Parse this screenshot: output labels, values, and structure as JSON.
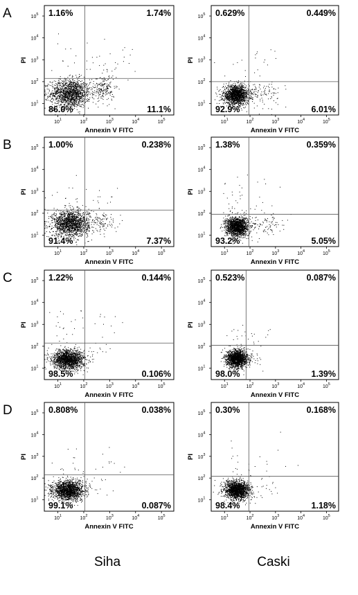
{
  "column_labels": [
    "Siha",
    "Caski"
  ],
  "row_labels": [
    "A",
    "B",
    "C",
    "D"
  ],
  "chart_data": [
    {
      "type": "scatter",
      "row": "A",
      "column": "Siha",
      "xlabel": "Annexin V FITC",
      "ylabel": "PI",
      "x_scale": "log",
      "y_scale": "log",
      "xlim": [
        3,
        300000
      ],
      "ylim": [
        3,
        300000
      ],
      "x_ticks": [
        "10",
        "10",
        "10",
        "10",
        "10"
      ],
      "x_tick_exp": [
        "1",
        "2",
        "3",
        "4",
        "5"
      ],
      "y_ticks": [
        "10",
        "10",
        "10",
        "10",
        "10"
      ],
      "y_tick_exp": [
        "1",
        "2",
        "3",
        "4",
        "5"
      ],
      "gate": {
        "x": 110,
        "y": 140
      },
      "quadrants": {
        "upper_left": "1.16%",
        "upper_right": "1.74%",
        "lower_left": "86.0%",
        "lower_right": "11.1%"
      },
      "populations": [
        {
          "cx": 30,
          "cy": 30,
          "sx": 0.38,
          "sy": 0.32,
          "frac": 0.86
        },
        {
          "cx": 600,
          "cy": 50,
          "sx": 0.2,
          "sy": 0.32,
          "frac": 0.11
        },
        {
          "cx": 30,
          "cy": 600,
          "sx": 0.5,
          "sy": 0.6,
          "frac": 0.012
        },
        {
          "cx": 800,
          "cy": 800,
          "sx": 0.5,
          "sy": 0.6,
          "frac": 0.017
        }
      ],
      "grid": false,
      "legend": "none"
    },
    {
      "type": "scatter",
      "row": "A",
      "column": "Caski",
      "xlabel": "Annexin V FITC",
      "ylabel": "PI",
      "x_scale": "log",
      "y_scale": "log",
      "xlim": [
        3,
        300000
      ],
      "ylim": [
        3,
        300000
      ],
      "x_ticks": [
        "10",
        "10",
        "10",
        "10",
        "10"
      ],
      "x_tick_exp": [
        "1",
        "2",
        "3",
        "4",
        "5"
      ],
      "y_ticks": [
        "10",
        "10",
        "10",
        "10",
        "10"
      ],
      "y_tick_exp": [
        "1",
        "2",
        "3",
        "4",
        "5"
      ],
      "gate": {
        "x": 90,
        "y": 100
      },
      "quadrants": {
        "upper_left": "0.629%",
        "upper_right": "0.449%",
        "lower_left": "92.9%",
        "lower_right": "6.01%"
      },
      "populations": [
        {
          "cx": 28,
          "cy": 25,
          "sx": 0.25,
          "sy": 0.22,
          "frac": 0.929
        },
        {
          "cx": 300,
          "cy": 30,
          "sx": 0.35,
          "sy": 0.3,
          "frac": 0.06
        },
        {
          "cx": 40,
          "cy": 500,
          "sx": 0.4,
          "sy": 0.5,
          "frac": 0.006
        },
        {
          "cx": 500,
          "cy": 500,
          "sx": 0.5,
          "sy": 0.5,
          "frac": 0.005
        }
      ],
      "grid": false,
      "legend": "none"
    },
    {
      "type": "scatter",
      "row": "B",
      "column": "Siha",
      "xlabel": "Annexin V FITC",
      "ylabel": "PI",
      "x_scale": "log",
      "y_scale": "log",
      "xlim": [
        3,
        300000
      ],
      "ylim": [
        3,
        300000
      ],
      "x_ticks": [
        "10",
        "10",
        "10",
        "10",
        "10"
      ],
      "x_tick_exp": [
        "1",
        "2",
        "3",
        "4",
        "5"
      ],
      "y_ticks": [
        "10",
        "10",
        "10",
        "10",
        "10"
      ],
      "y_tick_exp": [
        "1",
        "2",
        "3",
        "4",
        "5"
      ],
      "gate": {
        "x": 110,
        "y": 140
      },
      "quadrants": {
        "upper_left": "1.00%",
        "upper_right": "0.238%",
        "lower_left": "91.4%",
        "lower_right": "7.37%"
      },
      "populations": [
        {
          "cx": 30,
          "cy": 35,
          "sx": 0.35,
          "sy": 0.3,
          "frac": 0.914
        },
        {
          "cx": 400,
          "cy": 40,
          "sx": 0.35,
          "sy": 0.28,
          "frac": 0.074
        },
        {
          "cx": 30,
          "cy": 500,
          "sx": 0.4,
          "sy": 0.5,
          "frac": 0.01
        },
        {
          "cx": 600,
          "cy": 600,
          "sx": 0.5,
          "sy": 0.5,
          "frac": 0.002
        }
      ],
      "grid": false,
      "legend": "none"
    },
    {
      "type": "scatter",
      "row": "B",
      "column": "Caski",
      "xlabel": "Annexin V FITC",
      "ylabel": "PI",
      "x_scale": "log",
      "y_scale": "log",
      "xlim": [
        3,
        300000
      ],
      "ylim": [
        3,
        300000
      ],
      "x_ticks": [
        "10",
        "10",
        "10",
        "10",
        "10"
      ],
      "x_tick_exp": [
        "1",
        "2",
        "3",
        "4",
        "5"
      ],
      "y_ticks": [
        "10",
        "10",
        "10",
        "10",
        "10"
      ],
      "y_tick_exp": [
        "1",
        "2",
        "3",
        "4",
        "5"
      ],
      "gate": {
        "x": 90,
        "y": 90
      },
      "quadrants": {
        "upper_left": "1.38%",
        "upper_right": "0.359%",
        "lower_left": "93.2%",
        "lower_right": "5.05%"
      },
      "populations": [
        {
          "cx": 30,
          "cy": 25,
          "sx": 0.22,
          "sy": 0.22,
          "frac": 0.932
        },
        {
          "cx": 400,
          "cy": 30,
          "sx": 0.35,
          "sy": 0.25,
          "frac": 0.05
        },
        {
          "cx": 35,
          "cy": 500,
          "sx": 0.35,
          "sy": 0.5,
          "frac": 0.014
        },
        {
          "cx": 400,
          "cy": 400,
          "sx": 0.5,
          "sy": 0.5,
          "frac": 0.004
        }
      ],
      "grid": false,
      "legend": "none"
    },
    {
      "type": "scatter",
      "row": "C",
      "column": "Siha",
      "xlabel": "Annexin V FITC",
      "ylabel": "PI",
      "x_scale": "log",
      "y_scale": "log",
      "xlim": [
        3,
        300000
      ],
      "ylim": [
        3,
        300000
      ],
      "x_ticks": [
        "10",
        "10",
        "10",
        "10",
        "10"
      ],
      "x_tick_exp": [
        "1",
        "2",
        "3",
        "4",
        "5"
      ],
      "y_ticks": [
        "10",
        "10",
        "10",
        "10",
        "10"
      ],
      "y_tick_exp": [
        "1",
        "2",
        "3",
        "4",
        "5"
      ],
      "gate": {
        "x": 110,
        "y": 140
      },
      "quadrants": {
        "upper_left": "1.22%",
        "upper_right": "0.144%",
        "lower_left": "98.5%",
        "lower_right": "0.106%"
      },
      "populations": [
        {
          "cx": 25,
          "cy": 25,
          "sx": 0.3,
          "sy": 0.22,
          "frac": 0.985
        },
        {
          "cx": 30,
          "cy": 600,
          "sx": 0.35,
          "sy": 0.45,
          "frac": 0.012
        },
        {
          "cx": 400,
          "cy": 500,
          "sx": 0.5,
          "sy": 0.5,
          "frac": 0.0015
        },
        {
          "cx": 300,
          "cy": 40,
          "sx": 0.3,
          "sy": 0.3,
          "frac": 0.001
        }
      ],
      "grid": false,
      "legend": "none"
    },
    {
      "type": "scatter",
      "row": "C",
      "column": "Caski",
      "xlabel": "Annexin V FITC",
      "ylabel": "PI",
      "x_scale": "log",
      "y_scale": "log",
      "xlim": [
        3,
        300000
      ],
      "ylim": [
        3,
        300000
      ],
      "x_ticks": [
        "10",
        "10",
        "10",
        "10",
        "10"
      ],
      "x_tick_exp": [
        "1",
        "2",
        "3",
        "4",
        "5"
      ],
      "y_ticks": [
        "10",
        "10",
        "10",
        "10",
        "10"
      ],
      "y_tick_exp": [
        "1",
        "2",
        "3",
        "4",
        "5"
      ],
      "gate": {
        "x": 70,
        "y": 110
      },
      "quadrants": {
        "upper_left": "0.523%",
        "upper_right": "0.087%",
        "lower_left": "98.0%",
        "lower_right": "1.39%"
      },
      "populations": [
        {
          "cx": 30,
          "cy": 28,
          "sx": 0.2,
          "sy": 0.2,
          "frac": 0.98
        },
        {
          "cx": 150,
          "cy": 30,
          "sx": 0.2,
          "sy": 0.2,
          "frac": 0.014
        },
        {
          "cx": 35,
          "cy": 300,
          "sx": 0.25,
          "sy": 0.35,
          "frac": 0.005
        },
        {
          "cx": 200,
          "cy": 300,
          "sx": 0.3,
          "sy": 0.3,
          "frac": 0.001
        }
      ],
      "grid": false,
      "legend": "none"
    },
    {
      "type": "scatter",
      "row": "D",
      "column": "Siha",
      "xlabel": "Annexin V FITC",
      "ylabel": "PI",
      "x_scale": "log",
      "y_scale": "log",
      "xlim": [
        3,
        300000
      ],
      "ylim": [
        3,
        300000
      ],
      "x_ticks": [
        "10",
        "10",
        "10",
        "10",
        "10"
      ],
      "x_tick_exp": [
        "1",
        "2",
        "3",
        "4",
        "5"
      ],
      "y_ticks": [
        "10",
        "10",
        "10",
        "10",
        "10"
      ],
      "y_tick_exp": [
        "1",
        "2",
        "3",
        "4",
        "5"
      ],
      "gate": {
        "x": 110,
        "y": 140
      },
      "quadrants": {
        "upper_left": "0.808%",
        "upper_right": "0.038%",
        "lower_left": "99.1%",
        "lower_right": "0.087%"
      },
      "populations": [
        {
          "cx": 25,
          "cy": 28,
          "sx": 0.3,
          "sy": 0.22,
          "frac": 0.991
        },
        {
          "cx": 30,
          "cy": 500,
          "sx": 0.35,
          "sy": 0.45,
          "frac": 0.008
        },
        {
          "cx": 500,
          "cy": 500,
          "sx": 0.5,
          "sy": 0.5,
          "frac": 0.0004
        },
        {
          "cx": 300,
          "cy": 40,
          "sx": 0.3,
          "sy": 0.3,
          "frac": 0.0009
        }
      ],
      "grid": false,
      "legend": "none"
    },
    {
      "type": "scatter",
      "row": "D",
      "column": "Caski",
      "xlabel": "Annexin V FITC",
      "ylabel": "PI",
      "x_scale": "log",
      "y_scale": "log",
      "xlim": [
        3,
        300000
      ],
      "ylim": [
        3,
        300000
      ],
      "x_ticks": [
        "10",
        "10",
        "10",
        "10",
        "10"
      ],
      "x_tick_exp": [
        "1",
        "2",
        "3",
        "4",
        "5"
      ],
      "y_ticks": [
        "10",
        "10",
        "10",
        "10",
        "10"
      ],
      "y_tick_exp": [
        "1",
        "2",
        "3",
        "4",
        "5"
      ],
      "gate": {
        "x": 90,
        "y": 120
      },
      "quadrants": {
        "upper_left": "0.30%",
        "upper_right": "0.168%",
        "lower_left": "98.4%",
        "lower_right": "1.18%"
      },
      "populations": [
        {
          "cx": 30,
          "cy": 28,
          "sx": 0.25,
          "sy": 0.22,
          "frac": 0.984
        },
        {
          "cx": 300,
          "cy": 40,
          "sx": 0.4,
          "sy": 0.3,
          "frac": 0.012
        },
        {
          "cx": 40,
          "cy": 400,
          "sx": 0.3,
          "sy": 0.4,
          "frac": 0.003
        },
        {
          "cx": 500,
          "cy": 500,
          "sx": 0.5,
          "sy": 0.5,
          "frac": 0.0017
        }
      ],
      "grid": false,
      "legend": "none"
    }
  ]
}
